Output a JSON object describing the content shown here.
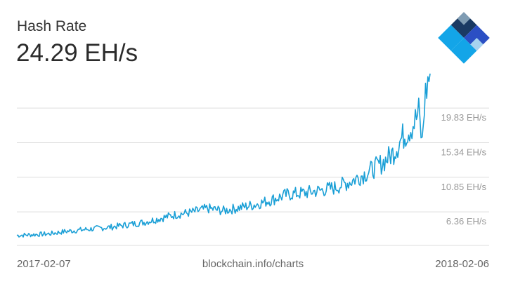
{
  "header": {
    "title": "Hash Rate",
    "current_value": "24.29 EH/s"
  },
  "footer": {
    "start_date": "2017-02-07",
    "source": "blockchain.info/charts",
    "end_date": "2018-02-06"
  },
  "logo": {
    "icon": "blockchain-diamond-logo-icon",
    "colors": [
      "#1a3a63",
      "#7f9cb3",
      "#2b4fc4",
      "#13a5e8",
      "#a7d3ef"
    ]
  },
  "colors": {
    "line": "#1a9fd6",
    "grid": "#dddddd",
    "tick_text": "#999999"
  },
  "chart_data": {
    "type": "line",
    "title": "Hash Rate",
    "xlabel": "",
    "ylabel": "",
    "x_start": "2017-02-07",
    "x_end": "2018-02-06",
    "yticks": [
      {
        "value": 6.36,
        "label": "6.36 EH/s"
      },
      {
        "value": 10.85,
        "label": "10.85 EH/s"
      },
      {
        "value": 15.34,
        "label": "15.34 EH/s"
      },
      {
        "value": 19.83,
        "label": "19.83 EH/s"
      }
    ],
    "ylim": [
      2.0,
      24.3
    ],
    "grid": true,
    "legend": "none",
    "series": [
      {
        "x": [
          "2017-02-07",
          "2017-02-21",
          "2017-03-07",
          "2017-03-21",
          "2017-04-04",
          "2017-04-18",
          "2017-05-02",
          "2017-05-16",
          "2017-05-30",
          "2017-06-13",
          "2017-06-27",
          "2017-07-11",
          "2017-07-25",
          "2017-08-08",
          "2017-08-22",
          "2017-09-05",
          "2017-09-19",
          "2017-10-03",
          "2017-10-17",
          "2017-10-31",
          "2017-11-14",
          "2017-11-28",
          "2017-12-12",
          "2017-12-26",
          "2018-01-05",
          "2018-01-12",
          "2018-01-19",
          "2018-01-24",
          "2018-01-27",
          "2018-01-30",
          "2018-02-01",
          "2018-02-03",
          "2018-02-06"
        ],
        "values": [
          3.3,
          3.4,
          3.5,
          3.8,
          4.0,
          4.2,
          4.4,
          4.7,
          5.0,
          5.5,
          6.0,
          6.3,
          6.8,
          6.5,
          6.9,
          7.3,
          7.9,
          8.6,
          8.8,
          9.1,
          9.5,
          10.3,
          11.4,
          12.7,
          14.1,
          15.9,
          17.2,
          18.2,
          19.2,
          15.2,
          20.3,
          22.6,
          24.3
        ]
      }
    ]
  }
}
